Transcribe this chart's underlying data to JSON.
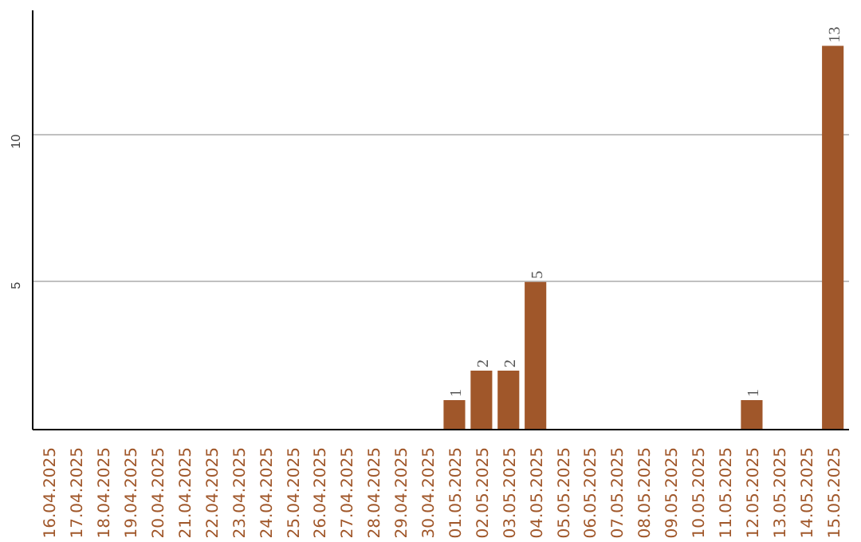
{
  "chart_data": {
    "type": "bar",
    "categories": [
      "16.04.2025",
      "17.04.2025",
      "18.04.2025",
      "19.04.2025",
      "20.04.2025",
      "21.04.2025",
      "22.04.2025",
      "23.04.2025",
      "24.04.2025",
      "25.04.2025",
      "26.04.2025",
      "27.04.2025",
      "28.04.2025",
      "29.04.2025",
      "30.04.2025",
      "01.05.2025",
      "02.05.2025",
      "03.05.2025",
      "04.05.2025",
      "05.05.2025",
      "06.05.2025",
      "07.05.2025",
      "08.05.2025",
      "09.05.2025",
      "10.05.2025",
      "11.05.2025",
      "12.05.2025",
      "13.05.2025",
      "14.05.2025",
      "15.05.2025"
    ],
    "values": [
      0,
      0,
      0,
      0,
      0,
      0,
      0,
      0,
      0,
      0,
      0,
      0,
      0,
      0,
      0,
      1,
      2,
      2,
      5,
      0,
      0,
      0,
      0,
      0,
      0,
      0,
      1,
      0,
      0,
      13
    ],
    "value_labels": [
      null,
      null,
      null,
      null,
      null,
      null,
      null,
      null,
      null,
      null,
      null,
      null,
      null,
      null,
      null,
      "1",
      "2",
      "2",
      "5",
      null,
      null,
      null,
      null,
      null,
      null,
      null,
      "1",
      null,
      null,
      "13"
    ],
    "color": "#a0572a",
    "ylim": [
      0,
      14.2
    ],
    "yticks": [
      5,
      10
    ],
    "grid": "y"
  }
}
